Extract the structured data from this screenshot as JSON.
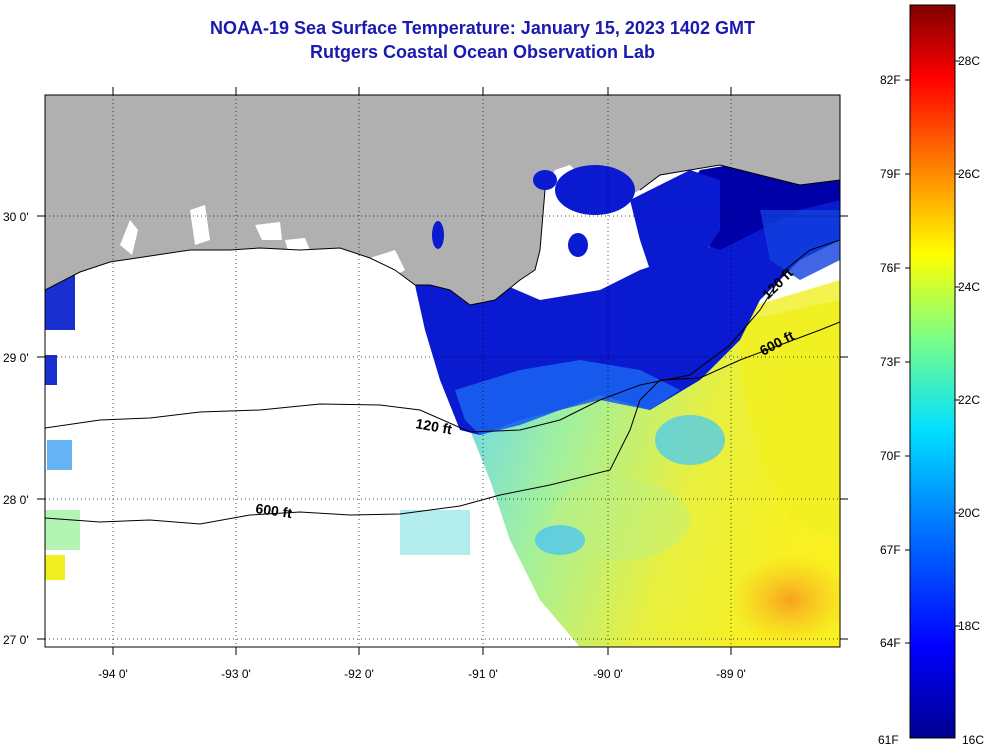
{
  "header": {
    "title": "NOAA-19 Sea Surface Temperature:  January 15, 2023 1402 GMT",
    "subtitle": "Rutgers Coastal Ocean Observation Lab"
  },
  "map": {
    "lon_ticks": [
      "-94 0'",
      "-93 0'",
      "-92 0'",
      "-91 0'",
      "-90 0'",
      "-89 0'"
    ],
    "lat_ticks": [
      "30 0'",
      "29 0'",
      "28 0'",
      "27 0'"
    ],
    "contours": [
      "120 ft",
      "120 ft",
      "600 ft",
      "600 ft"
    ]
  },
  "colorbar": {
    "fahrenheit": [
      "82F",
      "79F",
      "76F",
      "73F",
      "70F",
      "67F",
      "64F",
      "61F"
    ],
    "celsius": [
      "28C",
      "26C",
      "24C",
      "22C",
      "20C",
      "18C",
      "16C"
    ],
    "colors": [
      "#00008f",
      "#0000ff",
      "#0080ff",
      "#00e0ff",
      "#80ff80",
      "#ffff00",
      "#ff8000",
      "#ff0000",
      "#800000"
    ]
  }
}
